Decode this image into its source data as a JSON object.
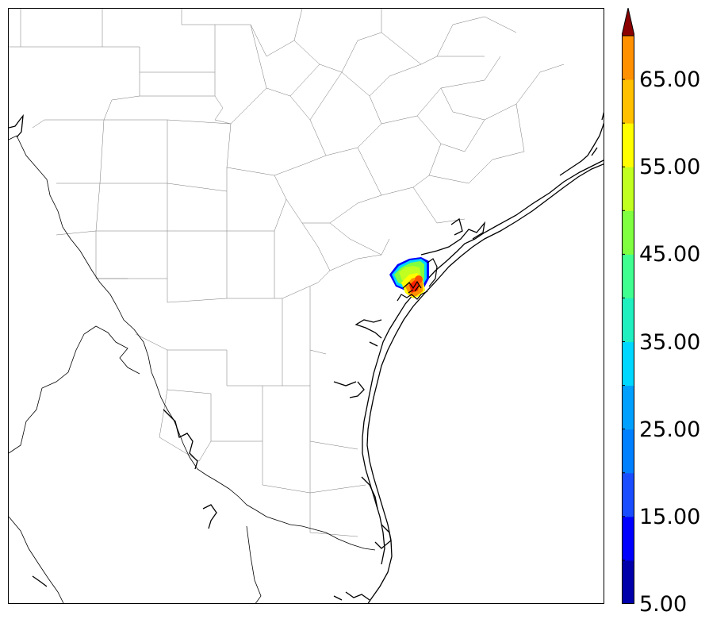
{
  "map": {
    "region": "South Texas Gulf Coast",
    "features": [
      "county-boundaries",
      "coastline",
      "international-border"
    ],
    "precipitation_cluster": {
      "location": "Corpus Christi Bay area",
      "max_level": 65
    }
  },
  "colorbar": {
    "min": 5,
    "max": 70,
    "step": 5,
    "extend": "max",
    "colors": [
      "#0000aa",
      "#0000ff",
      "#1a4dff",
      "#0080ff",
      "#00a0ff",
      "#00d8ff",
      "#20f0c0",
      "#40ff90",
      "#80ff40",
      "#c0ff20",
      "#ffff00",
      "#ffc000",
      "#ff9000",
      "#ff5000",
      "#ff2000",
      "#c00000",
      "#8b0000"
    ],
    "tick_labels": [
      "5.00",
      "15.00",
      "25.00",
      "35.00",
      "45.00",
      "55.00",
      "65.00"
    ]
  }
}
